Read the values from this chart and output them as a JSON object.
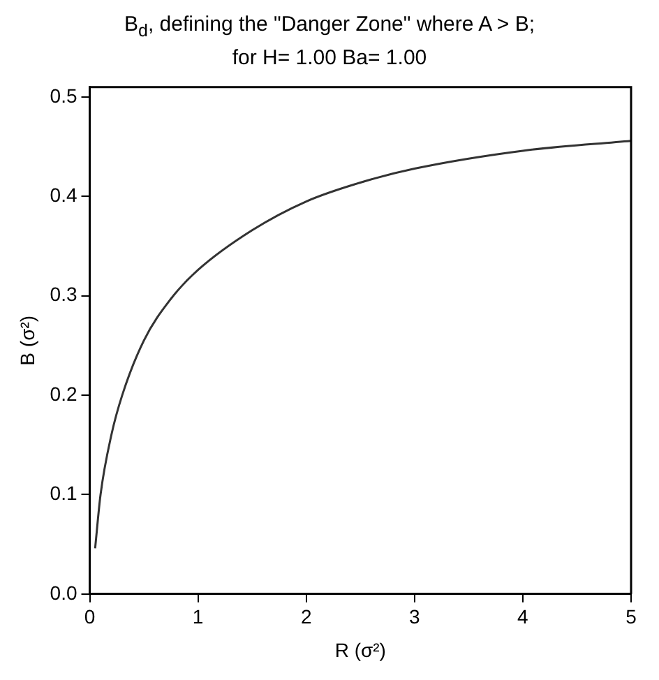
{
  "chart_data": {
    "type": "line",
    "title": "B$_{d}$, defining the \"Danger Zone\" where A > B;",
    "subtitle": "for H= 1.00 Ba= 1.00",
    "xlabel": "R (σ²)",
    "ylabel": "B (σ²)",
    "x": [
      0.05,
      0.1,
      0.2,
      0.3,
      0.5,
      0.75,
      1,
      1.5,
      2,
      2.5,
      3,
      4,
      5
    ],
    "series": [
      {
        "color": "#333333",
        "values": [
          0.046,
          0.1,
          0.16,
          0.2,
          0.255,
          0.297,
          0.326,
          0.366,
          0.395,
          0.414,
          0.428,
          0.446,
          0.456
        ]
      }
    ],
    "xlim": [
      0,
      5
    ],
    "xticks": [
      0,
      1,
      2,
      3,
      4,
      5
    ],
    "ylim": [
      0,
      0.51
    ],
    "yticks": [
      {
        "value": 0,
        "label": "0.0"
      },
      0.1,
      0.2,
      0.3,
      0.4,
      0.5
    ],
    "grid": false,
    "legend": false,
    "marker": "none",
    "line_style": "solid"
  }
}
